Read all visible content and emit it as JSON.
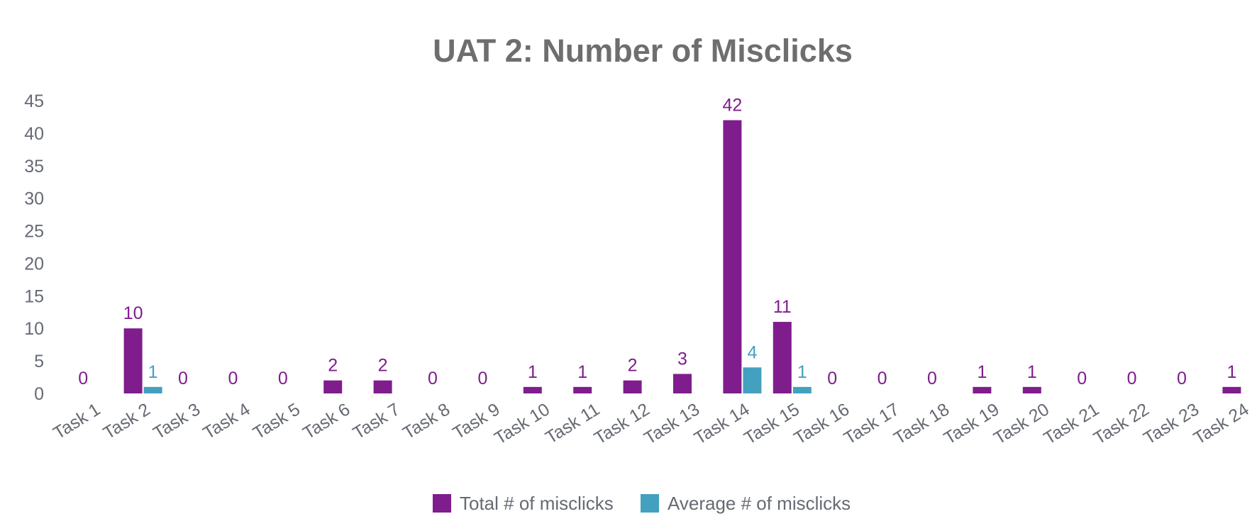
{
  "colors": {
    "total": "#7f1d8c",
    "average": "#44a0bf",
    "text": "#666a73",
    "title": "#6e6e6e"
  },
  "chart_data": {
    "type": "bar",
    "title": "UAT 2: Number of Misclicks",
    "xlabel": "",
    "ylabel": "",
    "ylim": [
      0,
      45
    ],
    "yticks": [
      0,
      5,
      10,
      15,
      20,
      25,
      30,
      35,
      40,
      45
    ],
    "grid": false,
    "legend_position": "bottom",
    "categories": [
      "Task 1",
      "Task 2",
      "Task 3",
      "Task 4",
      "Task 5",
      "Task 6",
      "Task 7",
      "Task 8",
      "Task 9",
      "Task 10",
      "Task 11",
      "Task 12",
      "Task 13",
      "Task 14",
      "Task 15",
      "Task 16",
      "Task 17",
      "Task 18",
      "Task 19",
      "Task 20",
      "Task 21",
      "Task 22",
      "Task 23",
      "Task 24"
    ],
    "series": [
      {
        "name": "Total # of misclicks",
        "color": "#7f1d8c",
        "values": [
          0,
          10,
          0,
          0,
          0,
          2,
          2,
          0,
          0,
          1,
          1,
          2,
          3,
          42,
          11,
          0,
          0,
          0,
          1,
          1,
          0,
          0,
          0,
          1
        ],
        "labels": [
          "0",
          "10",
          "0",
          "0",
          "0",
          "2",
          "2",
          "0",
          "0",
          "1",
          "1",
          "2",
          "3",
          "42",
          "11",
          "0",
          "0",
          "0",
          "1",
          "1",
          "0",
          "0",
          "0",
          "1"
        ]
      },
      {
        "name": "Average # of misclicks",
        "color": "#44a0bf",
        "values": [
          0,
          1,
          0,
          0,
          0,
          0,
          0,
          0,
          0,
          0,
          0,
          0,
          0,
          4,
          1,
          0,
          0,
          0,
          0,
          0,
          0,
          0,
          0,
          0
        ],
        "labels": [
          "",
          "1",
          "",
          "",
          "",
          "",
          "",
          "",
          "",
          "",
          "",
          "",
          "",
          "4",
          "1",
          "",
          "",
          "",
          "",
          "",
          "",
          "",
          "",
          ""
        ]
      }
    ]
  }
}
